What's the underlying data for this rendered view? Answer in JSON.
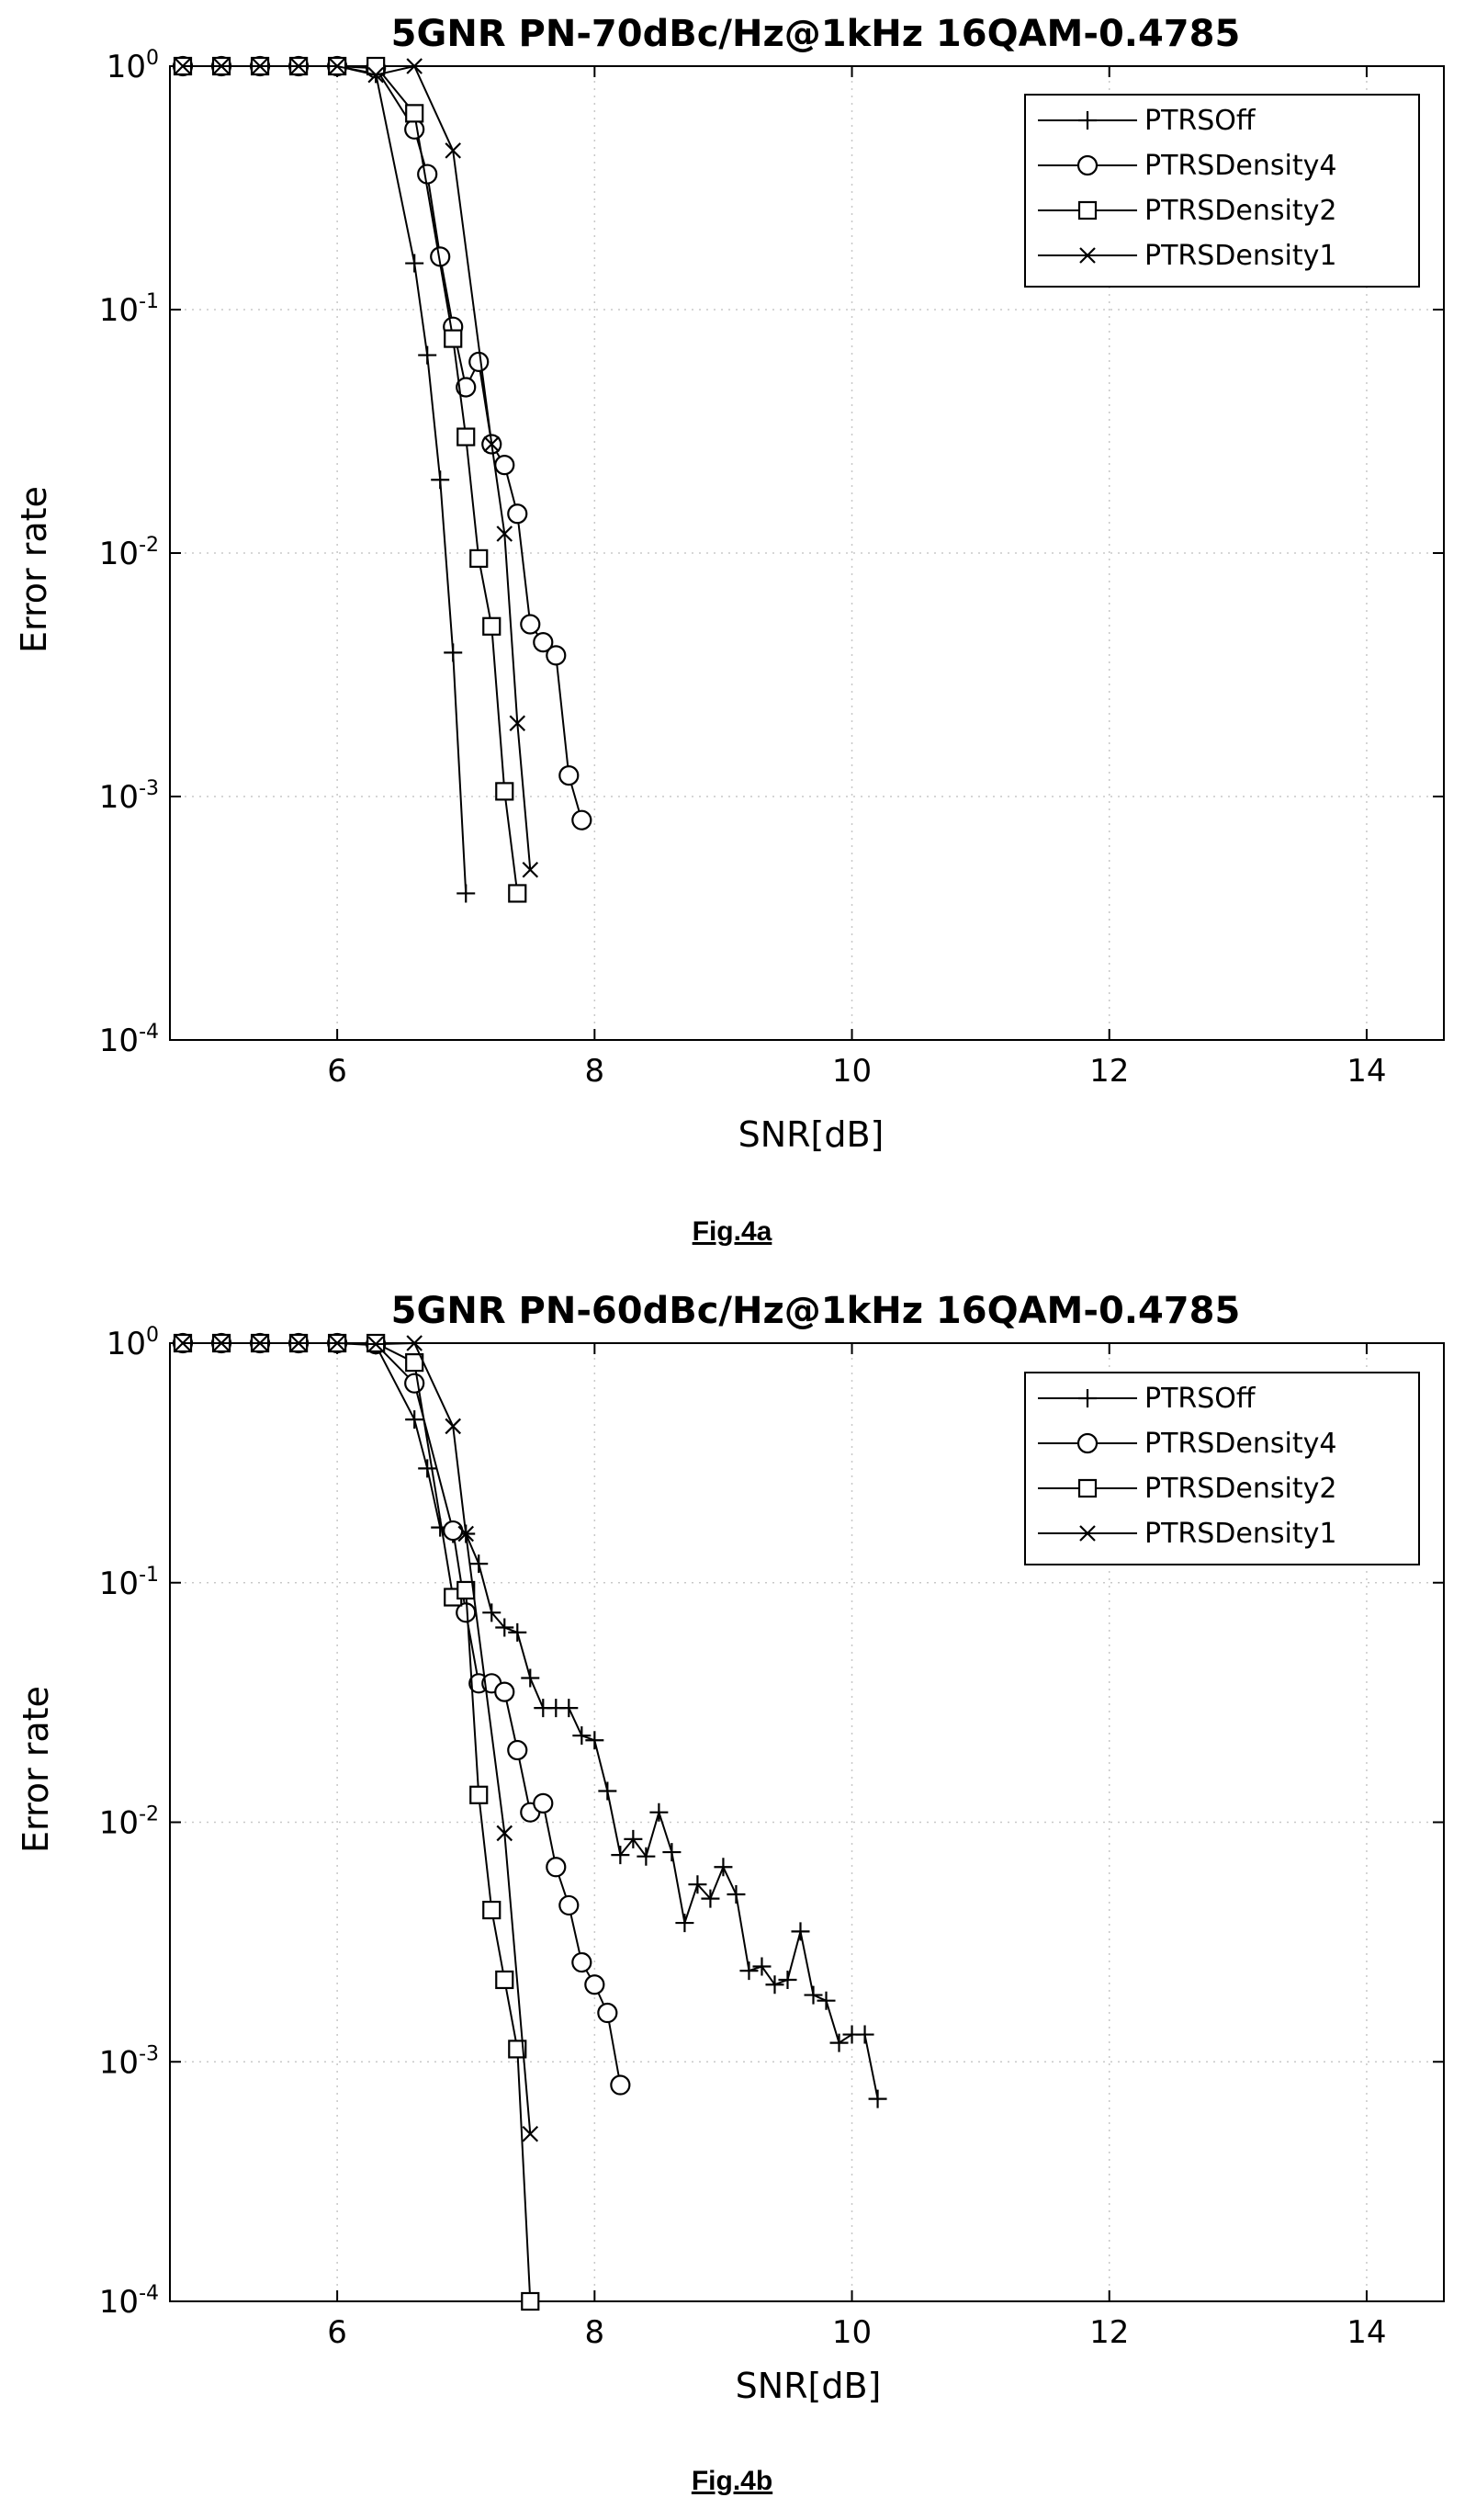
{
  "chart_data": [
    {
      "type": "line",
      "title": "5GNR PN-70dBc/Hz@1kHz 16QAM-0.4785",
      "xlabel": "SNR[dB]",
      "ylabel": "Error rate",
      "caption": "Fig.4a",
      "xlim": [
        4.7,
        14.6
      ],
      "ylim": [
        0.0001,
        1
      ],
      "xscale": "linear",
      "yscale": "log",
      "xticks": [
        6,
        8,
        10,
        12,
        14
      ],
      "yticks": [
        {
          "value": 1,
          "base": "10",
          "exp": "0"
        },
        {
          "value": 0.1,
          "base": "10",
          "exp": "-1"
        },
        {
          "value": 0.01,
          "base": "10",
          "exp": "-2"
        },
        {
          "value": 0.001,
          "base": "10",
          "exp": "-3"
        },
        {
          "value": 0.0001,
          "base": "10",
          "exp": "-4"
        }
      ],
      "grid": true,
      "legend_position": "top-right",
      "series": [
        {
          "name": "PTRSOff",
          "marker": "plus",
          "x": [
            4.8,
            5.1,
            5.4,
            5.7,
            6.0,
            6.3,
            6.6,
            6.7,
            6.8,
            6.9,
            7.0
          ],
          "y": [
            1,
            1,
            1,
            1,
            1,
            0.93,
            0.155,
            0.065,
            0.02,
            0.0039,
            0.0004
          ]
        },
        {
          "name": "PTRSDensity4",
          "marker": "circle",
          "x": [
            4.8,
            5.1,
            5.4,
            5.7,
            6.0,
            6.3,
            6.6,
            6.7,
            6.8,
            6.9,
            7.0,
            7.1,
            7.2,
            7.3,
            7.4,
            7.5,
            7.6,
            7.7,
            7.8,
            7.9
          ],
          "y": [
            1,
            1,
            1,
            1,
            1,
            0.98,
            0.55,
            0.36,
            0.165,
            0.085,
            0.048,
            0.061,
            0.028,
            0.023,
            0.0145,
            0.0051,
            0.0043,
            0.0038,
            0.00122,
            0.0008
          ]
        },
        {
          "name": "PTRSDensity2",
          "marker": "square",
          "x": [
            4.8,
            5.1,
            5.4,
            5.7,
            6.0,
            6.3,
            6.6,
            6.9,
            7.0,
            7.1,
            7.2,
            7.3,
            7.4
          ],
          "y": [
            1,
            1,
            1,
            1,
            1,
            1,
            0.64,
            0.076,
            0.03,
            0.0095,
            0.005,
            0.00105,
            0.0004
          ]
        },
        {
          "name": "PTRSDensity1",
          "marker": "x",
          "x": [
            4.8,
            5.1,
            5.4,
            5.7,
            6.0,
            6.3,
            6.6,
            6.9,
            7.2,
            7.3,
            7.4,
            7.5
          ],
          "y": [
            1,
            1,
            1,
            1,
            1,
            0.92,
            1,
            0.45,
            0.028,
            0.012,
            0.002,
            0.0005
          ]
        }
      ]
    },
    {
      "type": "line",
      "title": "5GNR PN-60dBc/Hz@1kHz 16QAM-0.4785",
      "xlabel": "SNR[dB]",
      "ylabel": "Error rate",
      "caption": "Fig.4b",
      "xlim": [
        4.7,
        14.6
      ],
      "ylim": [
        0.0001,
        1
      ],
      "xscale": "linear",
      "yscale": "log",
      "xticks": [
        6,
        8,
        10,
        12,
        14
      ],
      "yticks": [
        {
          "value": 1,
          "base": "10",
          "exp": "0"
        },
        {
          "value": 0.1,
          "base": "10",
          "exp": "-1"
        },
        {
          "value": 0.01,
          "base": "10",
          "exp": "-2"
        },
        {
          "value": 0.001,
          "base": "10",
          "exp": "-3"
        },
        {
          "value": 0.0001,
          "base": "10",
          "exp": "-4"
        }
      ],
      "grid": true,
      "legend_position": "top-right",
      "series": [
        {
          "name": "PTRSOff",
          "marker": "plus",
          "x": [
            4.8,
            5.1,
            5.4,
            5.7,
            6.0,
            6.3,
            6.6,
            6.7,
            6.8,
            6.9,
            7.0,
            7.1,
            7.2,
            7.3,
            7.4,
            7.5,
            7.6,
            7.7,
            7.8,
            7.9,
            8.0,
            8.1,
            8.2,
            8.3,
            8.4,
            8.5,
            8.6,
            8.7,
            8.8,
            8.9,
            9.0,
            9.1,
            9.2,
            9.3,
            9.4,
            9.5,
            9.6,
            9.7,
            9.8,
            9.9,
            10.0,
            10.1,
            10.2
          ],
          "y": [
            1,
            1,
            1,
            1,
            1,
            0.98,
            0.48,
            0.3,
            0.17,
            0.16,
            0.16,
            0.12,
            0.075,
            0.065,
            0.062,
            0.04,
            0.03,
            0.03,
            0.03,
            0.023,
            0.022,
            0.0135,
            0.0073,
            0.0085,
            0.0072,
            0.011,
            0.0075,
            0.0038,
            0.0055,
            0.0048,
            0.0065,
            0.005,
            0.0024,
            0.0025,
            0.0021,
            0.0022,
            0.0035,
            0.0019,
            0.0018,
            0.0012,
            0.0013,
            0.0013,
            0.0007
          ]
        },
        {
          "name": "PTRSDensity4",
          "marker": "circle",
          "x": [
            4.8,
            5.1,
            5.4,
            5.7,
            6.0,
            6.3,
            6.6,
            6.9,
            7.0,
            7.1,
            7.2,
            7.3,
            7.4,
            7.5,
            7.6,
            7.7,
            7.8,
            7.9,
            8.0,
            8.1,
            8.2
          ],
          "y": [
            1,
            1,
            1,
            1,
            1,
            0.99,
            0.68,
            0.165,
            0.075,
            0.038,
            0.038,
            0.035,
            0.02,
            0.011,
            0.012,
            0.0065,
            0.0045,
            0.0026,
            0.0021,
            0.0016,
            0.0008
          ]
        },
        {
          "name": "PTRSDensity2",
          "marker": "square",
          "x": [
            4.8,
            5.1,
            5.4,
            5.7,
            6.0,
            6.3,
            6.6,
            6.9,
            7.0,
            7.1,
            7.2,
            7.3,
            7.4,
            7.5
          ],
          "y": [
            1,
            1,
            1,
            1,
            1,
            1,
            0.83,
            0.087,
            0.093,
            0.013,
            0.0043,
            0.0022,
            0.00113,
            0.0001
          ]
        },
        {
          "name": "PTRSDensity1",
          "marker": "x",
          "x": [
            4.8,
            5.1,
            5.4,
            5.7,
            6.0,
            6.3,
            6.6,
            6.9,
            7.0,
            7.3,
            7.5
          ],
          "y": [
            1,
            1,
            1,
            1,
            1,
            0.99,
            1,
            0.45,
            0.16,
            0.009,
            0.0005
          ]
        }
      ]
    }
  ]
}
